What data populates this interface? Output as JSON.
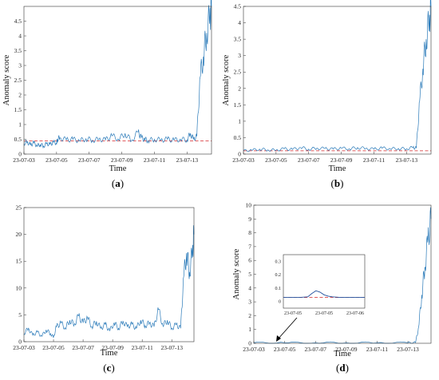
{
  "chart_data": [
    {
      "id": "a",
      "panel_label": "a",
      "type": "line",
      "xlabel": "Time",
      "ylabel": "Anomaly score",
      "x_ticks": [
        "23-07-03",
        "23-07-05",
        "23-07-07",
        "23-07-09",
        "23-07-11",
        "23-07-13"
      ],
      "x_range": [
        0,
        11.5
      ],
      "y_ticks": [
        0,
        0.5,
        1,
        1.5,
        2,
        2.5,
        3,
        3.5,
        4,
        4.5
      ],
      "ylim": [
        0,
        5
      ],
      "threshold": 0.45,
      "series_color": "#2a7ab9",
      "threshold_color": "#d62728",
      "series": [
        {
          "x": [
            0,
            0.2,
            0.4,
            0.6,
            0.8,
            1.0,
            1.2,
            1.4,
            1.6,
            1.8,
            2.0,
            2.05,
            2.2,
            2.6,
            3.0,
            3.4,
            3.8,
            4.2,
            4.6,
            5.0,
            5.4,
            5.8,
            6.2,
            6.6,
            7.0,
            7.2,
            7.4,
            7.6,
            8.0,
            8.4,
            8.8,
            9.2,
            9.6,
            10.0,
            10.2,
            10.4,
            10.6,
            10.8,
            11.0,
            11.2,
            11.4,
            11.5
          ],
          "y": [
            0.35,
            0.42,
            0.3,
            0.38,
            0.28,
            0.33,
            0.27,
            0.36,
            0.32,
            0.4,
            0.38,
            0.5,
            0.55,
            0.48,
            0.5,
            0.45,
            0.52,
            0.47,
            0.5,
            0.48,
            0.62,
            0.5,
            0.7,
            0.45,
            0.75,
            0.55,
            0.5,
            0.46,
            0.5,
            0.48,
            0.5,
            0.47,
            0.5,
            0.48,
            0.7,
            0.5,
            0.6,
            2.6,
            3.3,
            4.1,
            4.7,
            5.0
          ]
        }
      ]
    },
    {
      "id": "b",
      "panel_label": "b",
      "type": "line",
      "xlabel": "Time",
      "ylabel": "Anomaly score",
      "x_ticks": [
        "23-07-03",
        "23-07-05",
        "23-07-07",
        "23-07-09",
        "23-07-11",
        "23-07-13"
      ],
      "x_range": [
        0,
        11.5
      ],
      "y_ticks": [
        0,
        0.5,
        1,
        1.5,
        2,
        2.5,
        3,
        3.5,
        4,
        4.5
      ],
      "ylim": [
        0,
        4.5
      ],
      "threshold": 0.1,
      "series_color": "#2a7ab9",
      "threshold_color": "#d62728",
      "series": [
        {
          "x": [
            0,
            0.5,
            1.0,
            1.5,
            2.0,
            2.5,
            3.0,
            3.5,
            4.0,
            4.5,
            5.0,
            5.5,
            6.0,
            6.5,
            7.0,
            7.5,
            8.0,
            8.5,
            9.0,
            9.5,
            10.0,
            10.4,
            10.6,
            10.8,
            11.0,
            11.2,
            11.4,
            11.5
          ],
          "y": [
            0.1,
            0.12,
            0.15,
            0.13,
            0.12,
            0.16,
            0.14,
            0.2,
            0.15,
            0.18,
            0.17,
            0.15,
            0.18,
            0.16,
            0.2,
            0.17,
            0.15,
            0.18,
            0.16,
            0.17,
            0.16,
            0.2,
            0.18,
            1.6,
            2.6,
            3.5,
            4.1,
            4.5
          ]
        }
      ]
    },
    {
      "id": "c",
      "panel_label": "c",
      "type": "line",
      "xlabel": "Time",
      "ylabel": "",
      "x_ticks": [
        "23-07-03",
        "23-07-05",
        "23-07-07",
        "23-07-09",
        "23-07-11",
        "23-07-13"
      ],
      "x_range": [
        0,
        11.5
      ],
      "y_ticks": [
        0,
        5,
        10,
        15,
        20,
        25
      ],
      "ylim": [
        0,
        25
      ],
      "threshold": null,
      "series_color": "#2a7ab9",
      "series": [
        {
          "x": [
            0,
            0.3,
            0.6,
            0.9,
            1.2,
            1.5,
            1.8,
            2.0,
            2.2,
            2.5,
            2.8,
            3.1,
            3.4,
            3.7,
            4.0,
            4.3,
            4.6,
            4.9,
            5.2,
            5.5,
            5.8,
            6.1,
            6.4,
            6.7,
            7.0,
            7.3,
            7.6,
            7.9,
            8.2,
            8.5,
            8.8,
            9.1,
            9.4,
            9.7,
            10.0,
            10.3,
            10.6,
            10.8,
            11.0,
            11.2,
            11.4,
            11.5
          ],
          "y": [
            1.5,
            2.5,
            1.2,
            1.8,
            1.0,
            2.2,
            1.5,
            0.8,
            2.8,
            3.5,
            2.5,
            4.0,
            3.2,
            4.8,
            3.5,
            4.5,
            2.8,
            3.8,
            2.5,
            3.2,
            2.0,
            3.5,
            2.5,
            3.8,
            2.8,
            3.2,
            2.5,
            4.0,
            3.0,
            3.5,
            2.8,
            6.0,
            3.0,
            4.0,
            2.5,
            3.2,
            2.5,
            12.0,
            16.5,
            13.0,
            17.0,
            20.0
          ]
        }
      ]
    },
    {
      "id": "d",
      "panel_label": "d",
      "type": "line",
      "xlabel": "Time",
      "ylabel": "Anomaly score",
      "x_ticks": [
        "23-07-03",
        "23-07-05",
        "23-07-07",
        "23-07-09",
        "23-07-11",
        "23-07-13"
      ],
      "x_range": [
        0,
        11.5
      ],
      "y_ticks": [
        0,
        1,
        2,
        3,
        4,
        5,
        6,
        7,
        8,
        9,
        10
      ],
      "ylim": [
        0,
        10
      ],
      "threshold": null,
      "series_color": "#2a7ab9",
      "series": [
        {
          "x": [
            0,
            2.0,
            4.0,
            6.0,
            8.0,
            10.0,
            10.5,
            10.7,
            10.9,
            11.1,
            11.3,
            11.5
          ],
          "y": [
            0.04,
            0.04,
            0.04,
            0.04,
            0.04,
            0.04,
            0.05,
            1.2,
            3.5,
            5.5,
            7.5,
            9.0
          ]
        }
      ],
      "inset": {
        "x_ticks": [
          "23-07-05",
          "23-07-05",
          "23-07-06"
        ],
        "y_ticks": [
          0,
          0.1,
          0.2,
          0.3
        ],
        "ylim": [
          -0.05,
          0.35
        ],
        "threshold": 0.03,
        "series": [
          {
            "x": [
              0,
              0.1,
              0.2,
              0.3,
              0.35,
              0.4,
              0.45,
              0.5,
              0.55,
              0.6,
              0.7,
              0.8,
              0.9,
              1.0
            ],
            "y": [
              0.03,
              0.03,
              0.03,
              0.035,
              0.06,
              0.08,
              0.07,
              0.05,
              0.04,
              0.035,
              0.03,
              0.03,
              0.03,
              0.03
            ]
          }
        ]
      }
    }
  ]
}
